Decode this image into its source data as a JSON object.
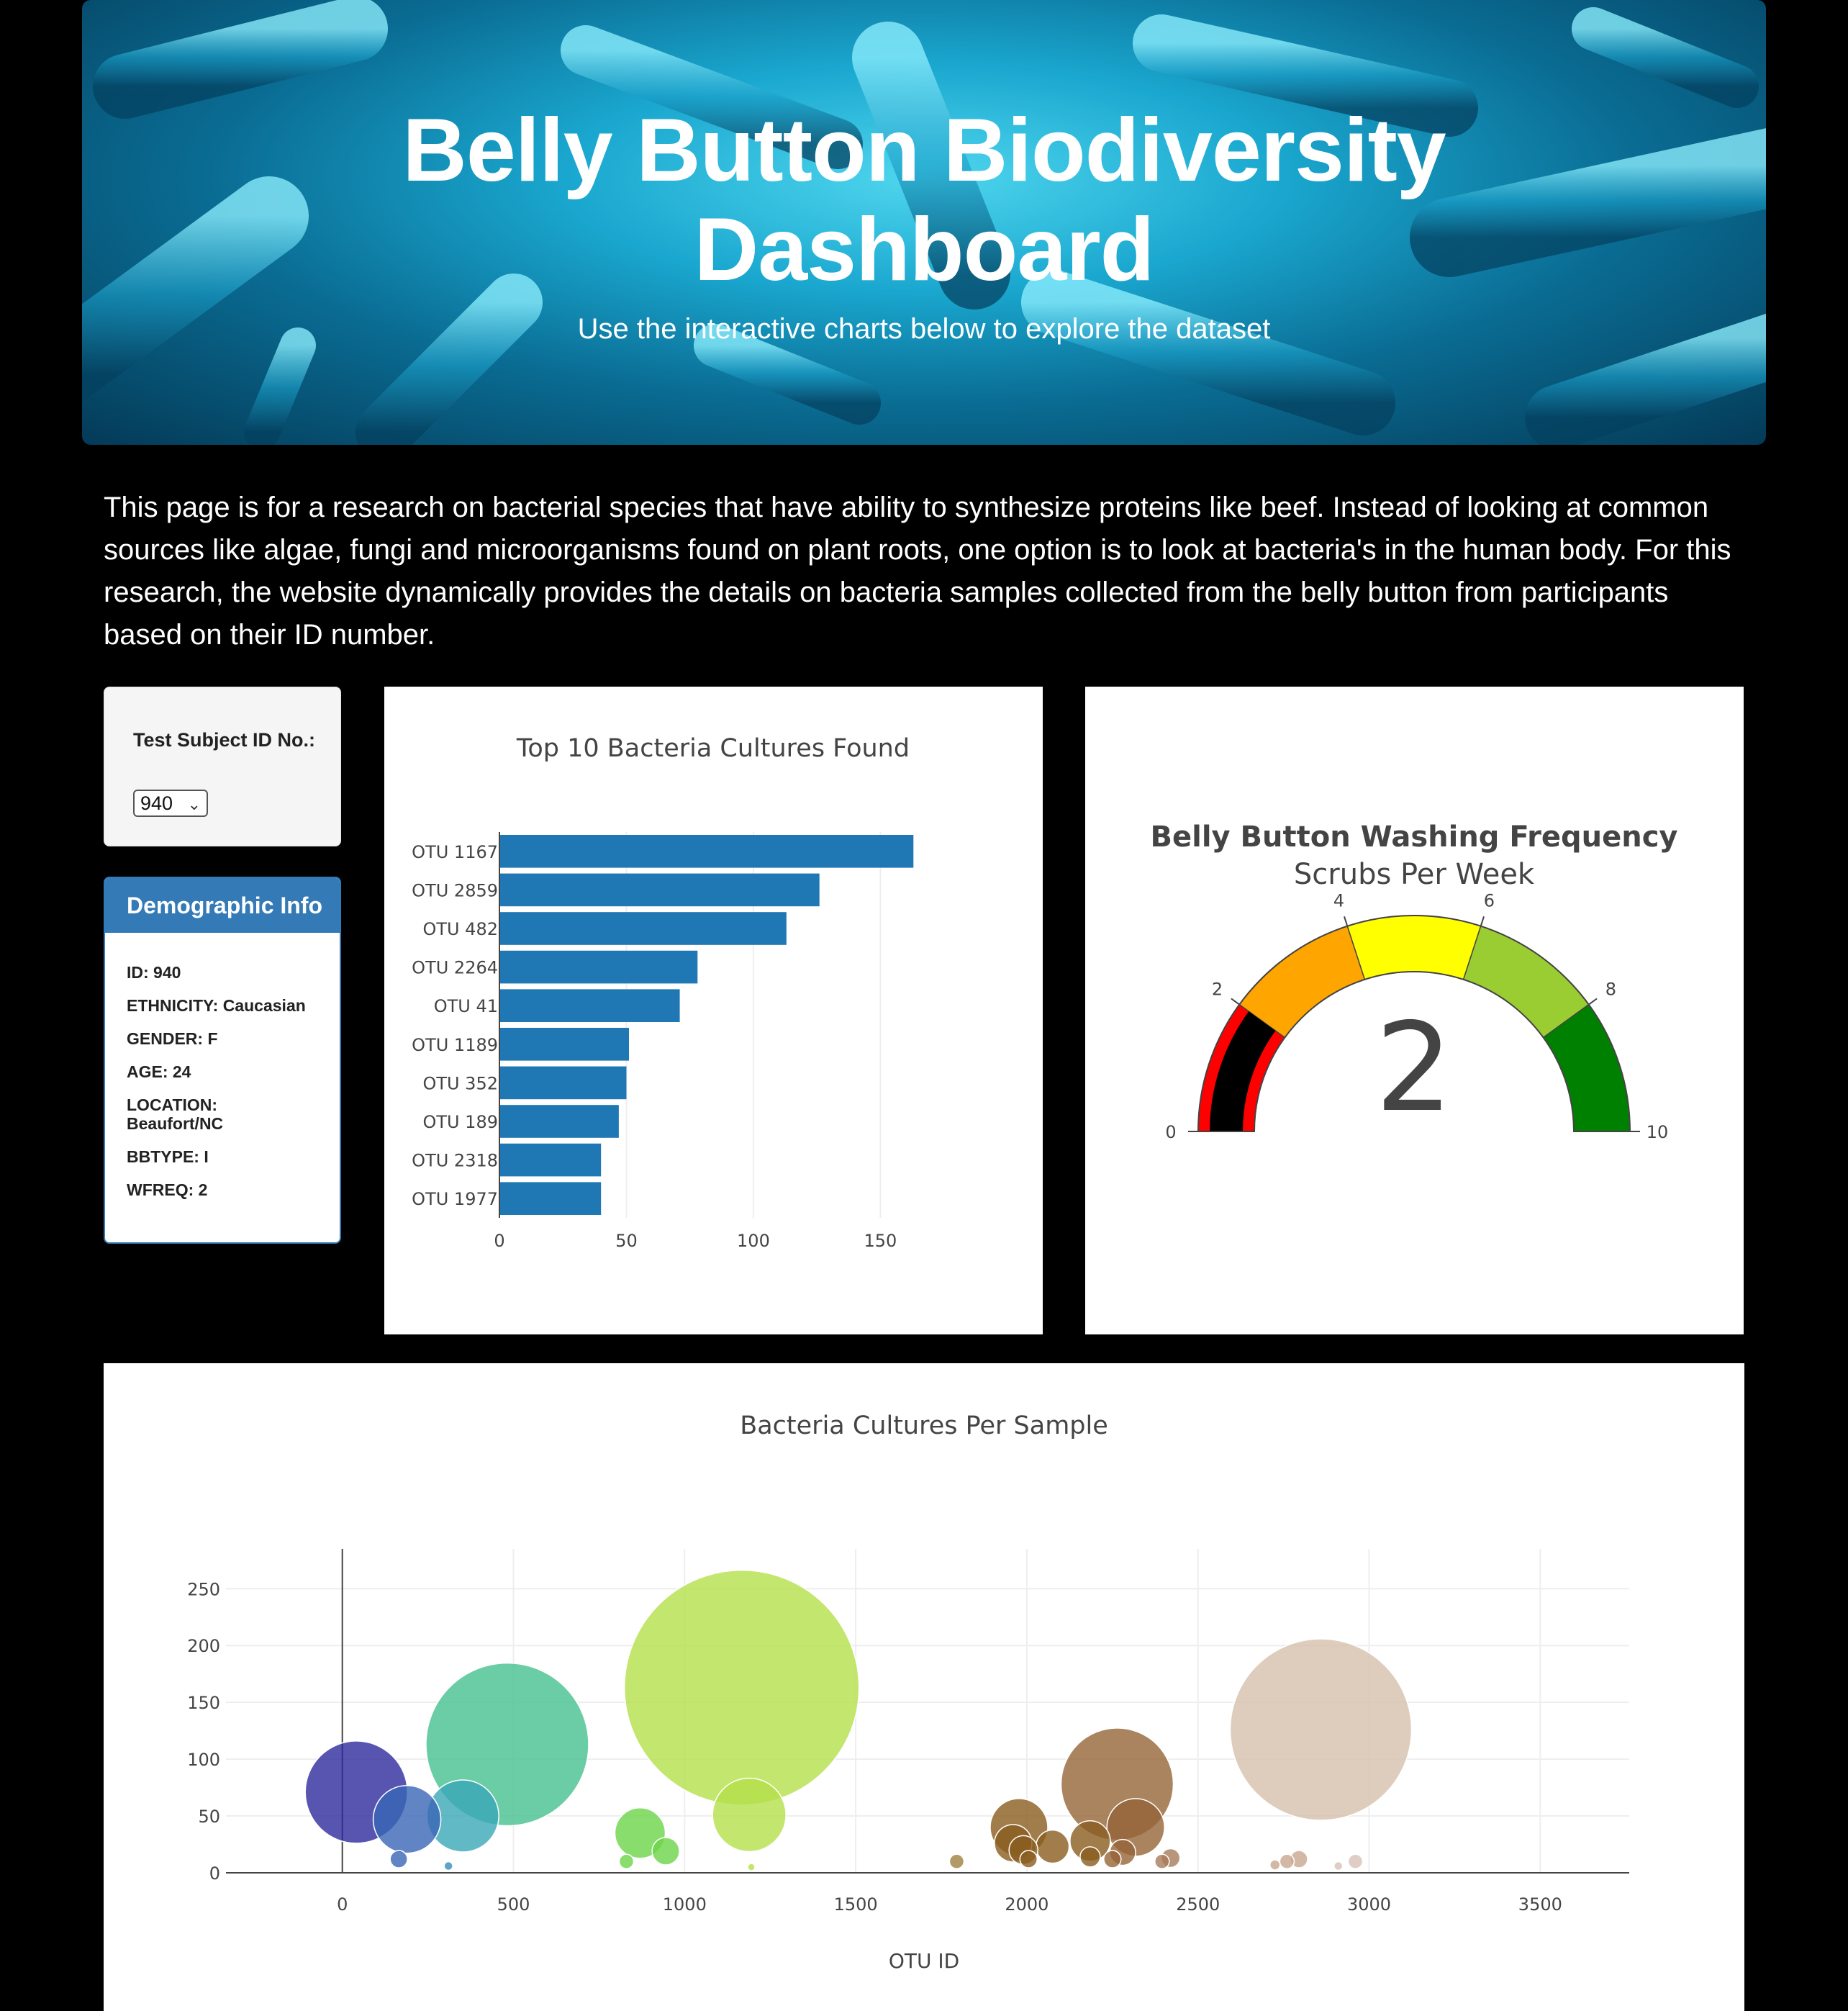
{
  "header": {
    "title": "Belly Button Biodiversity Dashboard",
    "title_line1": "Belly Button Biodiversity",
    "title_line2": "Dashboard",
    "subtitle": "Use the interactive charts below to explore the dataset"
  },
  "intro": "This page is for a research on bacterial species that have ability to synthesize proteins like beef. Instead of looking at common sources like algae, fungi and microorganisms found on plant roots, one option is to look at bacteria's in the human body. For this research, the website dynamically provides the details on bacteria samples collected from the belly button from participants based on their ID number.",
  "selector": {
    "label": "Test Subject ID No.:",
    "selected": "940"
  },
  "demographics": {
    "heading": "Demographic Info",
    "rows": [
      "ID: 940",
      "ETHNICITY: Caucasian",
      "GENDER: F",
      "AGE: 24",
      "LOCATION: Beaufort/NC",
      "BBTYPE: I",
      "WFREQ: 2"
    ]
  },
  "colors": {
    "bar": "#1f77b4",
    "panel": "#337ab7"
  },
  "chart_data": [
    {
      "type": "bar",
      "orientation": "horizontal",
      "title": "Top 10 Bacteria Cultures Found",
      "categories": [
        "OTU 1167",
        "OTU 2859",
        "OTU 482",
        "OTU 2264",
        "OTU 41",
        "OTU 1189",
        "OTU 352",
        "OTU 189",
        "OTU 2318",
        "OTU 1977"
      ],
      "values": [
        163,
        126,
        113,
        78,
        71,
        51,
        50,
        47,
        40,
        40
      ],
      "xlim": [
        0,
        170
      ],
      "xticks": [
        0,
        50,
        100,
        150
      ],
      "grid": true
    },
    {
      "type": "gauge",
      "title": "Belly Button Washing Frequency",
      "subtitle": "Scrubs Per Week",
      "value": 2,
      "range": [
        0,
        10
      ],
      "ticks": [
        0,
        2,
        4,
        6,
        8,
        10
      ],
      "steps": [
        {
          "range": [
            0,
            2
          ],
          "color": "#ff0000"
        },
        {
          "range": [
            2,
            4
          ],
          "color": "#ffa500"
        },
        {
          "range": [
            4,
            6
          ],
          "color": "#ffff00"
        },
        {
          "range": [
            6,
            8
          ],
          "color": "#9acd32"
        },
        {
          "range": [
            8,
            10
          ],
          "color": "#008000"
        }
      ],
      "bar_color": "#000000"
    },
    {
      "type": "scatter",
      "title": "Bacteria Cultures Per Sample",
      "xlabel": "OTU ID",
      "xlim": [
        -340,
        3760
      ],
      "ylim": [
        0,
        285
      ],
      "xticks": [
        0,
        500,
        1000,
        1500,
        2000,
        2500,
        3000,
        3500
      ],
      "yticks": [
        0,
        50,
        100,
        150,
        200,
        250
      ],
      "points": [
        {
          "x": 41,
          "y": 71,
          "color": "#2e2a9c"
        },
        {
          "x": 189,
          "y": 47,
          "color": "#3a66b5"
        },
        {
          "x": 165,
          "y": 12,
          "color": "#3a66b5"
        },
        {
          "x": 352,
          "y": 50,
          "color": "#3aa8b8"
        },
        {
          "x": 310,
          "y": 6,
          "color": "#3a8fb5"
        },
        {
          "x": 482,
          "y": 113,
          "color": "#45c08f"
        },
        {
          "x": 870,
          "y": 35,
          "color": "#6cd448"
        },
        {
          "x": 945,
          "y": 19,
          "color": "#6cd448"
        },
        {
          "x": 830,
          "y": 10,
          "color": "#6cd448"
        },
        {
          "x": 1167,
          "y": 163,
          "color": "#b4e04a"
        },
        {
          "x": 1189,
          "y": 51,
          "color": "#b4e04a"
        },
        {
          "x": 1195,
          "y": 5,
          "color": "#b4e04a"
        },
        {
          "x": 1795,
          "y": 10,
          "color": "#a08040"
        },
        {
          "x": 1977,
          "y": 40,
          "color": "#8a5c1f"
        },
        {
          "x": 1960,
          "y": 26,
          "color": "#8a5c1f"
        },
        {
          "x": 1990,
          "y": 20,
          "color": "#8a5c1f"
        },
        {
          "x": 2075,
          "y": 23,
          "color": "#8a5c1f"
        },
        {
          "x": 2005,
          "y": 12,
          "color": "#8a5c1f"
        },
        {
          "x": 2185,
          "y": 28,
          "color": "#8a5c1f"
        },
        {
          "x": 2185,
          "y": 14,
          "color": "#8a5c1f"
        },
        {
          "x": 2264,
          "y": 78,
          "color": "#956437"
        },
        {
          "x": 2318,
          "y": 40,
          "color": "#956437"
        },
        {
          "x": 2280,
          "y": 18,
          "color": "#956437"
        },
        {
          "x": 2250,
          "y": 12,
          "color": "#956437"
        },
        {
          "x": 2420,
          "y": 13,
          "color": "#a87a5a"
        },
        {
          "x": 2395,
          "y": 10,
          "color": "#a87a5a"
        },
        {
          "x": 2859,
          "y": 126,
          "color": "#d6c0ac"
        },
        {
          "x": 2795,
          "y": 12,
          "color": "#c9a690"
        },
        {
          "x": 2760,
          "y": 10,
          "color": "#c9a690"
        },
        {
          "x": 2725,
          "y": 7,
          "color": "#c9a690"
        },
        {
          "x": 2960,
          "y": 10,
          "color": "#d8c2b8"
        },
        {
          "x": 2910,
          "y": 6,
          "color": "#d8c2b8"
        }
      ]
    }
  ]
}
